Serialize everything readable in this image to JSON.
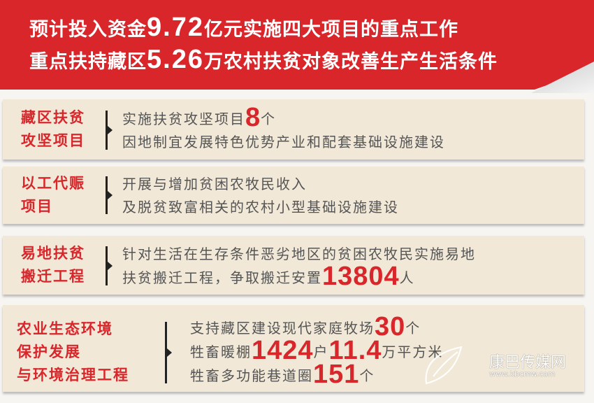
{
  "banner": {
    "line1": {
      "pre": "预计投入资金",
      "num": "9.72",
      "post": "亿元实施四大项目的重点工作"
    },
    "line2": {
      "pre": "重点扶持藏区",
      "num": "5.26",
      "post": "万农村扶贫对象改善生产生活条件"
    }
  },
  "panels": [
    {
      "title": [
        "藏区扶贫",
        "攻坚项目"
      ],
      "lines": [
        {
          "pre": "实施扶贫攻坚项目",
          "num": "8",
          "post": "个"
        },
        {
          "pre": "因地制宜发展特色优势产业和配套基础设施建设"
        }
      ]
    },
    {
      "title": [
        "以工代赈",
        "项目"
      ],
      "lines": [
        {
          "pre": "开展与增加贫困农牧民收入"
        },
        {
          "pre": "及脱贫致富相关的农村小型基础设施建设"
        }
      ]
    },
    {
      "title": [
        "易地扶贫",
        "搬迁工程"
      ],
      "lines": [
        {
          "pre": "针对生活在生存条件恶劣地区的贫困农牧民实施易地"
        },
        {
          "pre": "扶贫搬迁工程，争取搬迁安置",
          "num": "13804",
          "post": "人"
        }
      ]
    },
    {
      "title": [
        "农业生态环境",
        "保护发展",
        "与环境治理工程"
      ],
      "lines": [
        {
          "pre": "支持藏区建设现代家庭牧场",
          "num": "30",
          "post": "个"
        },
        {
          "pre": "牲畜暖棚",
          "num": "1424",
          "mid": "户",
          "num2": "11.4",
          "post": "万平方米"
        },
        {
          "pre": "牲畜多功能巷道圈",
          "num": "151",
          "post": "个"
        }
      ]
    }
  ],
  "watermark": {
    "name": "康巴传媒网",
    "url": "www.kbcmw.com"
  },
  "colors": {
    "accent": "#d9262b",
    "panel": "#f1e8d7",
    "text": "#555555"
  }
}
